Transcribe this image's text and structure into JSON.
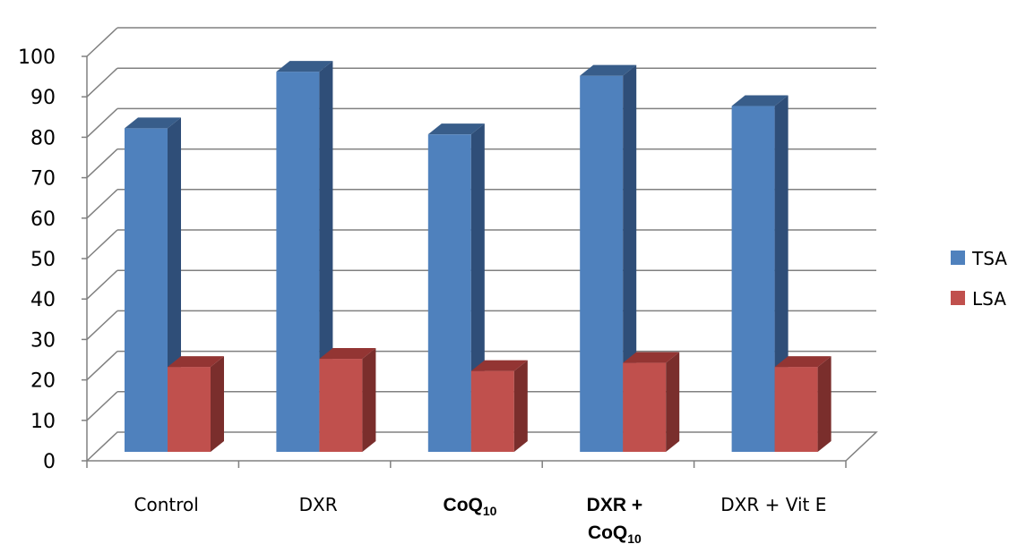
{
  "chart_data": {
    "type": "bar",
    "style": "3d-clustered-column",
    "categories": [
      {
        "parts": [
          {
            "text": "Control",
            "sub": false
          }
        ],
        "bold": false
      },
      {
        "parts": [
          {
            "text": "DXR",
            "sub": false
          }
        ],
        "bold": false
      },
      {
        "parts": [
          {
            "text": "CoQ",
            "sub": false
          },
          {
            "text": "10",
            "sub": true
          }
        ],
        "bold": true
      },
      {
        "lines": [
          [
            {
              "text": "DXR +",
              "sub": false
            }
          ],
          [
            {
              "text": "CoQ",
              "sub": false
            },
            {
              "text": "10",
              "sub": true
            }
          ]
        ],
        "bold": true
      },
      {
        "parts": [
          {
            "text": "DXR + Vit E",
            "sub": false
          }
        ],
        "bold": false
      }
    ],
    "series": [
      {
        "name": "TSA",
        "values": [
          80,
          94,
          78.5,
          93,
          85.5
        ],
        "color": "#4F81BD",
        "side_color": "#2F4E78",
        "top_color": "#385D8A"
      },
      {
        "name": "LSA",
        "values": [
          21,
          23,
          20,
          22,
          21
        ],
        "color": "#C0504D",
        "side_color": "#7A2E2C",
        "top_color": "#933533"
      }
    ],
    "yaxis": {
      "min": 0,
      "max": 100,
      "step": 10,
      "ticks": [
        "0",
        "10",
        "20",
        "30",
        "40",
        "50",
        "60",
        "70",
        "80",
        "90",
        "100"
      ]
    },
    "title": "",
    "xlabel": "",
    "ylabel": "",
    "grid": true,
    "legend": "right"
  }
}
